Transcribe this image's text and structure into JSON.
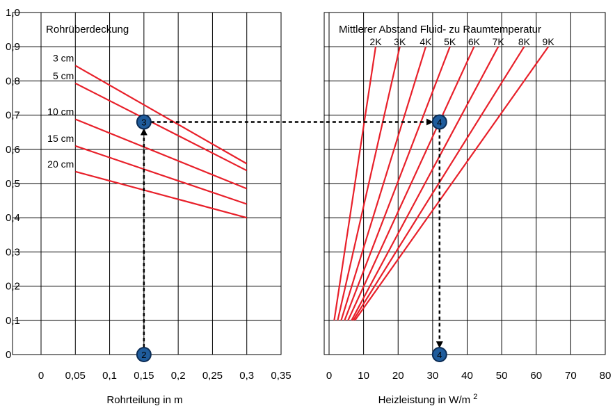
{
  "chart_data": [
    {
      "type": "line",
      "title": "Rohrüberdeckung",
      "xlabel": "Rohrteilung in m",
      "ylabel": "",
      "xlim": [
        0,
        0.35
      ],
      "ylim": [
        0,
        1.0
      ],
      "xticks": [
        "0",
        "0,05",
        "0,1",
        "0,15",
        "0,2",
        "0,25",
        "0,3",
        "0,35"
      ],
      "yticks": [
        "0",
        "0,1",
        "0,2",
        "0,3",
        "0,4",
        "0,5",
        "0,6",
        "0,7",
        "0,8",
        "0,9",
        "1,0"
      ],
      "grid": true,
      "series": [
        {
          "name": "3 cm",
          "x": [
            0.05,
            0.3
          ],
          "y": [
            0.845,
            0.558
          ]
        },
        {
          "name": "5 cm",
          "x": [
            0.05,
            0.3
          ],
          "y": [
            0.793,
            0.538
          ]
        },
        {
          "name": "10 cm",
          "x": [
            0.05,
            0.3
          ],
          "y": [
            0.688,
            0.485
          ]
        },
        {
          "name": "15 cm",
          "x": [
            0.05,
            0.3
          ],
          "y": [
            0.61,
            0.44
          ]
        },
        {
          "name": "20 cm",
          "x": [
            0.05,
            0.3
          ],
          "y": [
            0.535,
            0.4
          ]
        }
      ]
    },
    {
      "type": "line",
      "title": "Mittlerer Abstand Fluid- zu Raumtemperatur",
      "xlabel": "Heizleistung in W/m²",
      "ylabel": "",
      "xlim": [
        0,
        80
      ],
      "ylim": [
        0,
        1.0
      ],
      "xticks": [
        "0",
        "10",
        "20",
        "30",
        "40",
        "50",
        "60",
        "70",
        "80"
      ],
      "grid": true,
      "series": [
        {
          "name": "2K",
          "x": [
            1.5,
            13.5
          ],
          "y": [
            0.1,
            0.9
          ]
        },
        {
          "name": "3K",
          "x": [
            2.5,
            20.5
          ],
          "y": [
            0.1,
            0.9
          ]
        },
        {
          "name": "4K",
          "x": [
            3.5,
            28.0
          ],
          "y": [
            0.1,
            0.9
          ]
        },
        {
          "name": "5K",
          "x": [
            4.5,
            35.0
          ],
          "y": [
            0.1,
            0.9
          ]
        },
        {
          "name": "6K",
          "x": [
            5.5,
            42.0
          ],
          "y": [
            0.1,
            0.9
          ]
        },
        {
          "name": "7K",
          "x": [
            6.5,
            49.0
          ],
          "y": [
            0.1,
            0.9
          ]
        },
        {
          "name": "8K",
          "x": [
            7.0,
            56.5
          ],
          "y": [
            0.1,
            0.9
          ]
        },
        {
          "name": "9K",
          "x": [
            7.5,
            63.5
          ],
          "y": [
            0.1,
            0.9
          ]
        }
      ]
    }
  ],
  "annotations": {
    "markers": [
      {
        "label": "2",
        "panel": 0,
        "x": 0.15,
        "y": 0.0
      },
      {
        "label": "3",
        "panel": 0,
        "x": 0.15,
        "y": 0.68
      },
      {
        "label": "4",
        "panel": 1,
        "x": 32,
        "y": 0.68
      },
      {
        "label": "4",
        "panel": 1,
        "x": 32,
        "y": 0.0
      }
    ],
    "path": [
      {
        "from": 0,
        "to": 1
      },
      {
        "from": 1,
        "to": 2
      },
      {
        "from": 2,
        "to": 3
      }
    ]
  },
  "superscript": "2",
  "colors": {
    "curve": "#e8202a",
    "marker": "#1f5c9c"
  }
}
